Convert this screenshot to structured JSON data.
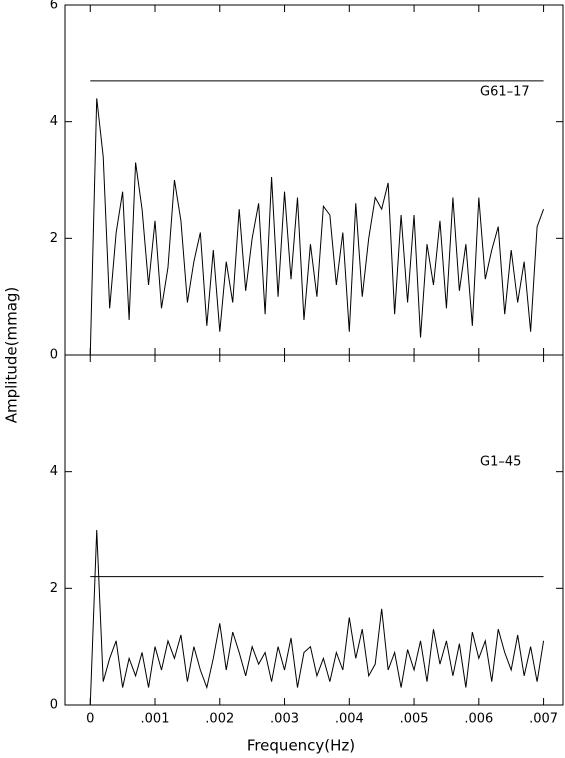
{
  "chart_data": [
    {
      "type": "line",
      "label": "G61–17",
      "ylabel": "Amplitude(mmag)",
      "color": "#000000",
      "threshold": 4.7,
      "x": [
        0,
        0.0001,
        0.0002,
        0.0003,
        0.0004,
        0.0005,
        0.0006,
        0.0007,
        0.0008,
        0.0009,
        0.001,
        0.0011,
        0.0012,
        0.0013,
        0.0014,
        0.0015,
        0.0016,
        0.0017,
        0.0018,
        0.0019,
        0.002,
        0.0021,
        0.0022,
        0.0023,
        0.0024,
        0.0025,
        0.0026,
        0.0027,
        0.0028,
        0.0029,
        0.003,
        0.0031,
        0.0032,
        0.0033,
        0.0034,
        0.0035,
        0.0036,
        0.0037,
        0.0038,
        0.0039,
        0.004,
        0.0041,
        0.0042,
        0.0043,
        0.0044,
        0.0045,
        0.0046,
        0.0047,
        0.0048,
        0.0049,
        0.005,
        0.0051,
        0.0052,
        0.0053,
        0.0054,
        0.0055,
        0.0056,
        0.0057,
        0.0058,
        0.0059,
        0.006,
        0.0061,
        0.0062,
        0.0063,
        0.0064,
        0.0065,
        0.0066,
        0.0067,
        0.0068,
        0.0069,
        0.007
      ],
      "values": [
        0.0,
        4.4,
        3.4,
        0.8,
        2.1,
        2.8,
        0.6,
        3.3,
        2.5,
        1.2,
        2.3,
        0.8,
        1.5,
        3.0,
        2.3,
        0.9,
        1.6,
        2.1,
        0.5,
        1.8,
        0.4,
        1.6,
        0.9,
        2.5,
        1.1,
        2.0,
        2.6,
        0.7,
        3.05,
        1.0,
        2.8,
        1.3,
        2.7,
        0.6,
        1.9,
        1.0,
        2.55,
        2.4,
        1.2,
        2.1,
        0.4,
        2.6,
        1.0,
        2.0,
        2.7,
        2.5,
        2.95,
        0.7,
        2.4,
        0.9,
        2.4,
        0.3,
        1.9,
        1.2,
        2.3,
        0.8,
        2.7,
        1.1,
        1.9,
        0.5,
        2.7,
        1.3,
        1.8,
        2.2,
        0.7,
        1.8,
        0.9,
        1.6,
        0.4,
        2.2,
        2.5
      ],
      "xlim": [
        -0.00039,
        0.0073
      ],
      "ylim": [
        0,
        6
      ],
      "yticks": [
        0,
        2,
        4,
        6
      ],
      "xticks": [
        0,
        0.001,
        0.002,
        0.003,
        0.004,
        0.005,
        0.006,
        0.007
      ]
    },
    {
      "type": "line",
      "label": "G1–45",
      "xlabel": "Frequency(Hz)",
      "color": "#000000",
      "threshold": 2.2,
      "x": [
        0,
        0.0001,
        0.0002,
        0.0003,
        0.0004,
        0.0005,
        0.0006,
        0.0007,
        0.0008,
        0.0009,
        0.001,
        0.0011,
        0.0012,
        0.0013,
        0.0014,
        0.0015,
        0.0016,
        0.0017,
        0.0018,
        0.0019,
        0.002,
        0.0021,
        0.0022,
        0.0023,
        0.0024,
        0.0025,
        0.0026,
        0.0027,
        0.0028,
        0.0029,
        0.003,
        0.0031,
        0.0032,
        0.0033,
        0.0034,
        0.0035,
        0.0036,
        0.0037,
        0.0038,
        0.0039,
        0.004,
        0.0041,
        0.0042,
        0.0043,
        0.0044,
        0.0045,
        0.0046,
        0.0047,
        0.0048,
        0.0049,
        0.005,
        0.0051,
        0.0052,
        0.0053,
        0.0054,
        0.0055,
        0.0056,
        0.0057,
        0.0058,
        0.0059,
        0.006,
        0.0061,
        0.0062,
        0.0063,
        0.0064,
        0.0065,
        0.0066,
        0.0067,
        0.0068,
        0.0069,
        0.007
      ],
      "values": [
        0.0,
        3.0,
        0.4,
        0.8,
        1.1,
        0.3,
        0.8,
        0.5,
        0.9,
        0.3,
        1.0,
        0.6,
        1.1,
        0.8,
        1.2,
        0.4,
        1.0,
        0.6,
        0.3,
        0.8,
        1.4,
        0.6,
        1.25,
        0.9,
        0.5,
        1.0,
        0.7,
        0.9,
        0.4,
        1.0,
        0.6,
        1.15,
        0.3,
        0.9,
        1.0,
        0.5,
        0.8,
        0.4,
        0.9,
        0.6,
        1.5,
        0.8,
        1.3,
        0.5,
        0.7,
        1.65,
        0.6,
        0.9,
        0.3,
        0.95,
        0.6,
        1.1,
        0.4,
        1.3,
        0.7,
        1.1,
        0.5,
        1.05,
        0.3,
        1.25,
        0.8,
        1.1,
        0.4,
        1.3,
        0.9,
        0.6,
        1.2,
        0.5,
        1.0,
        0.4,
        1.1
      ],
      "xlim": [
        -0.00039,
        0.0073
      ],
      "ylim": [
        0,
        6
      ],
      "yticks": [
        0,
        2,
        4
      ],
      "xticks": [
        0,
        {
          "value": 0.001,
          "label": ".001"
        },
        {
          "value": 0.002,
          "label": ".002"
        },
        {
          "value": 0.003,
          "label": ".003"
        },
        {
          "value": 0.004,
          "label": ".004"
        },
        {
          "value": 0.005,
          "label": ".005"
        },
        {
          "value": 0.006,
          "label": ".006"
        },
        {
          "value": 0.007,
          "label": ".007"
        }
      ]
    }
  ]
}
